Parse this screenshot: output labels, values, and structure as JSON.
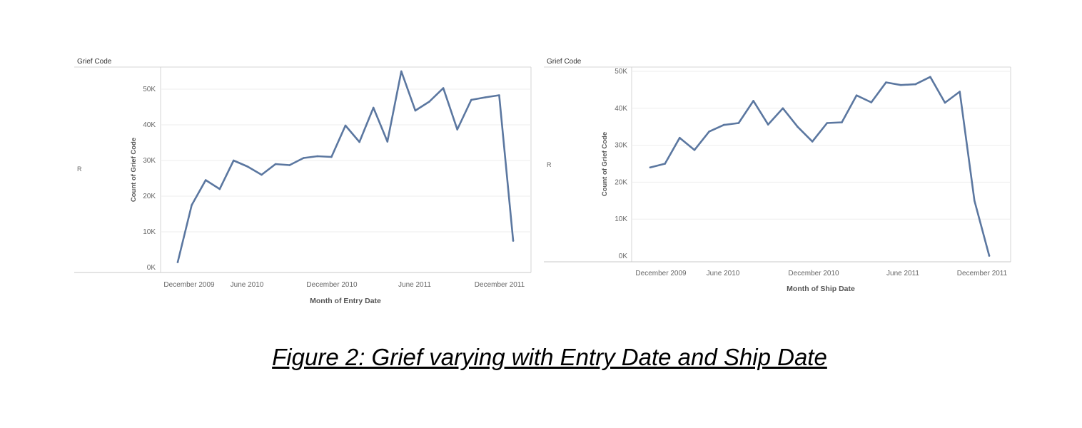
{
  "caption": "Figure 2: Grief varying with Entry Date and Ship Date",
  "colors": {
    "line": "#5b77a0",
    "axis": "#d4d4d4",
    "grid": "#eeeeee",
    "text": "#666666",
    "label": "#333333"
  },
  "chart_data": [
    {
      "type": "line",
      "header": "Grief Code",
      "row_label": "R",
      "xlabel": "Month of Entry Date",
      "ylabel": "Count of Grief Code",
      "ylim": [
        0,
        55000
      ],
      "yticks": [
        "0K",
        "10K",
        "20K",
        "30K",
        "40K",
        "50K"
      ],
      "xticks": [
        "December 2009",
        "June 2010",
        "December 2010",
        "June 2011",
        "December 2011"
      ],
      "grid": true,
      "series": [
        {
          "x": [
            "2009-11",
            "2009-12",
            "2010-01",
            "2010-02",
            "2010-03",
            "2010-04",
            "2010-05",
            "2010-06",
            "2010-07",
            "2010-08",
            "2010-09",
            "2010-10",
            "2010-11",
            "2010-12",
            "2011-01",
            "2011-02",
            "2011-03",
            "2011-04",
            "2011-05",
            "2011-06",
            "2011-07",
            "2011-08",
            "2011-09",
            "2011-10",
            "2011-11",
            "2011-12"
          ],
          "values": [
            1500,
            17500,
            24500,
            22000,
            30000,
            28300,
            26000,
            29000,
            28700,
            30700,
            31200,
            31000,
            39800,
            35200,
            44800,
            35300,
            55000,
            44000,
            46500,
            50300,
            38700,
            47000,
            47700,
            48300,
            7500,
            null
          ]
        }
      ]
    },
    {
      "type": "line",
      "header": "Grief Code",
      "row_label": "R",
      "xlabel": "Month of Ship Date",
      "ylabel": "Count of Grief Code",
      "ylim": [
        0,
        50000
      ],
      "yticks": [
        "0K",
        "10K",
        "20K",
        "30K",
        "40K",
        "50K"
      ],
      "xticks": [
        "December 2009",
        "June 2010",
        "December 2010",
        "June 2011",
        "December 2011"
      ],
      "grid": true,
      "series": [
        {
          "x": [
            "2009-11",
            "2009-12",
            "2010-01",
            "2010-02",
            "2010-03",
            "2010-04",
            "2010-05",
            "2010-06",
            "2010-07",
            "2010-08",
            "2010-09",
            "2010-10",
            "2010-11",
            "2010-12",
            "2011-01",
            "2011-02",
            "2011-03",
            "2011-04",
            "2011-05",
            "2011-06",
            "2011-07",
            "2011-08",
            "2011-09",
            "2011-10",
            "2011-11",
            "2011-12"
          ],
          "values": [
            24000,
            25000,
            32000,
            28700,
            33700,
            35500,
            36000,
            42000,
            35600,
            40000,
            35000,
            31000,
            36000,
            36200,
            43500,
            41600,
            47000,
            46300,
            46500,
            48500,
            41500,
            44500,
            15000,
            100,
            null,
            null
          ]
        }
      ]
    }
  ]
}
